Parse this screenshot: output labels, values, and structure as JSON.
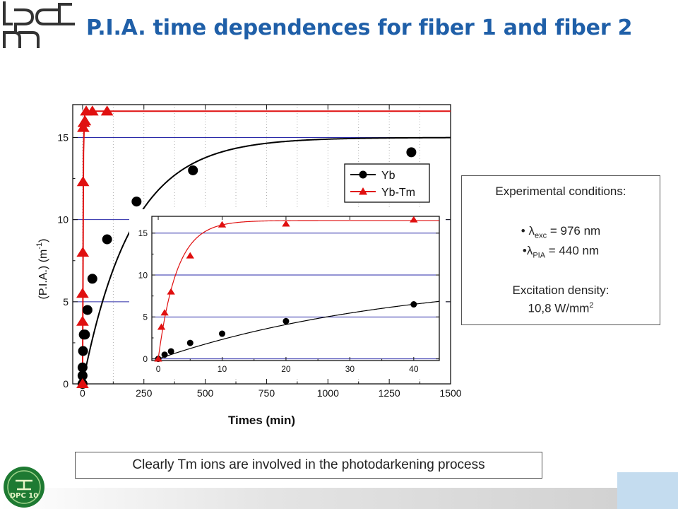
{
  "slide": {
    "title": "P.I.A. time dependences for fiber 1 and fiber 2",
    "logo_text": "lpcm",
    "footer_logo_text": "DPC 10"
  },
  "conditions": {
    "heading": "Experimental conditions:",
    "lambda_exc_symbol": "λ",
    "lambda_exc_sub": "exc",
    "lambda_exc_value": " = 976 nm",
    "lambda_pia_symbol": "λ",
    "lambda_pia_sub": "PIA",
    "lambda_pia_value": " = 440 nm",
    "density_label": "Excitation density:",
    "density_value": "10,8 W/mm",
    "density_sup": "2"
  },
  "conclusion": "Clearly Tm ions are involved  in the photodarkening process",
  "colors": {
    "title": "#1f5fa8",
    "yb": "#000000",
    "ybtm": "#e01010",
    "grid": "#2a2aa8"
  },
  "chart_data": [
    {
      "type": "scatter",
      "xlabel": "Times (min)",
      "ylabel": "(P.I.A.) (m",
      "ylabel_sup": "-1",
      "ylabel_close": ")",
      "xlim": [
        -40,
        1500
      ],
      "ylim": [
        0,
        17
      ],
      "xticks": [
        0,
        250,
        500,
        750,
        1000,
        1250,
        1500
      ],
      "yticks": [
        0,
        5,
        10,
        15
      ],
      "grid": "horizontal",
      "legend_position": "top-right",
      "series": [
        {
          "name": "Yb",
          "marker": "circle",
          "color": "#000000",
          "x": [
            0,
            0,
            0,
            2,
            5,
            10,
            20,
            40,
            100,
            220,
            450,
            1340
          ],
          "y": [
            0,
            0.5,
            1,
            2,
            3,
            3,
            4.5,
            6.4,
            8.8,
            11.1,
            13,
            14.1
          ],
          "fit": [
            15,
            200
          ]
        },
        {
          "name": "Yb-Tm",
          "marker": "triangle",
          "color": "#e01010",
          "x": [
            0,
            0,
            0,
            1,
            2,
            3,
            5,
            10,
            15,
            40,
            100
          ],
          "y": [
            0,
            3.8,
            5.5,
            8,
            12.3,
            15.6,
            15.9,
            16,
            16.6,
            16.6,
            16.6
          ],
          "fit": [
            16.6,
            2
          ]
        }
      ]
    },
    {
      "type": "scatter",
      "inset": true,
      "xlim": [
        -1,
        44
      ],
      "ylim": [
        -0.2,
        17
      ],
      "xticks": [
        0,
        10,
        20,
        30,
        40
      ],
      "yticks": [
        0,
        5,
        10,
        15
      ],
      "grid": "horizontal",
      "series": [
        {
          "name": "Yb",
          "marker": "circle",
          "color": "#000000",
          "x": [
            0,
            1,
            2,
            5,
            10,
            20,
            40
          ],
          "y": [
            0,
            0.5,
            0.9,
            1.9,
            3,
            4.5,
            6.5
          ],
          "fit": [
            10,
            38
          ]
        },
        {
          "name": "Yb-Tm",
          "marker": "triangle",
          "color": "#e01010",
          "x": [
            0,
            0.5,
            1,
            2,
            5,
            10,
            20,
            40
          ],
          "y": [
            0,
            3.8,
            5.5,
            8,
            12.3,
            16,
            16.1,
            16.6
          ],
          "fit": [
            16.5,
            2.9
          ]
        }
      ]
    }
  ]
}
